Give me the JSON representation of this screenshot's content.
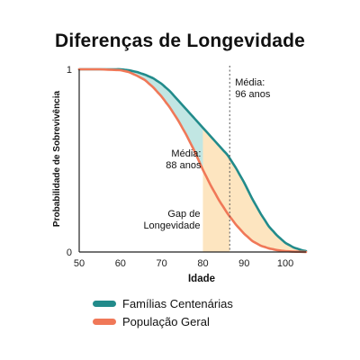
{
  "chart_data": {
    "type": "line",
    "title": "Diferenças de Longevidade",
    "xlabel": "Idade",
    "ylabel": "Probabilidade de Sobrevivência",
    "xlim": [
      50,
      105
    ],
    "ylim": [
      0,
      1
    ],
    "x_ticks": [
      50,
      60,
      70,
      80,
      90,
      100
    ],
    "y_ticks": [
      0,
      1
    ],
    "x": [
      50,
      55,
      60,
      62,
      64,
      66,
      68,
      70,
      72,
      74,
      76,
      78,
      80,
      82,
      84,
      86,
      88,
      90,
      92,
      94,
      96,
      98,
      100,
      102,
      104,
      105
    ],
    "series": [
      {
        "name": "Famílias Centenárias",
        "color": "#228b8b",
        "values": [
          1.0,
          1.0,
          1.0,
          0.995,
          0.985,
          0.97,
          0.95,
          0.92,
          0.88,
          0.83,
          0.78,
          0.73,
          0.68,
          0.63,
          0.58,
          0.53,
          0.46,
          0.38,
          0.29,
          0.21,
          0.14,
          0.09,
          0.05,
          0.025,
          0.01,
          0.005
        ]
      },
      {
        "name": "População Geral",
        "color": "#f07858",
        "values": [
          1.0,
          1.0,
          0.995,
          0.985,
          0.965,
          0.94,
          0.9,
          0.85,
          0.79,
          0.72,
          0.64,
          0.55,
          0.45,
          0.36,
          0.28,
          0.21,
          0.15,
          0.1,
          0.06,
          0.035,
          0.02,
          0.01,
          0.005,
          0.002,
          0.001,
          0.0
        ]
      }
    ],
    "fill_between_color": "#b6e2de",
    "gap_fill_color": "#fde5c0",
    "annotations": [
      {
        "id": "media-centenarias",
        "lines": [
          "Média:",
          "96 anos"
        ],
        "x": 86.5
      },
      {
        "id": "media-geral",
        "lines": [
          "Média:",
          "88 anos"
        ],
        "x": 80
      },
      {
        "id": "gap",
        "lines": [
          "Gap de",
          "Longevidade"
        ]
      }
    ],
    "gap_range": [
      80,
      86.5
    ],
    "legend_position": "bottom-left",
    "grid": false
  }
}
